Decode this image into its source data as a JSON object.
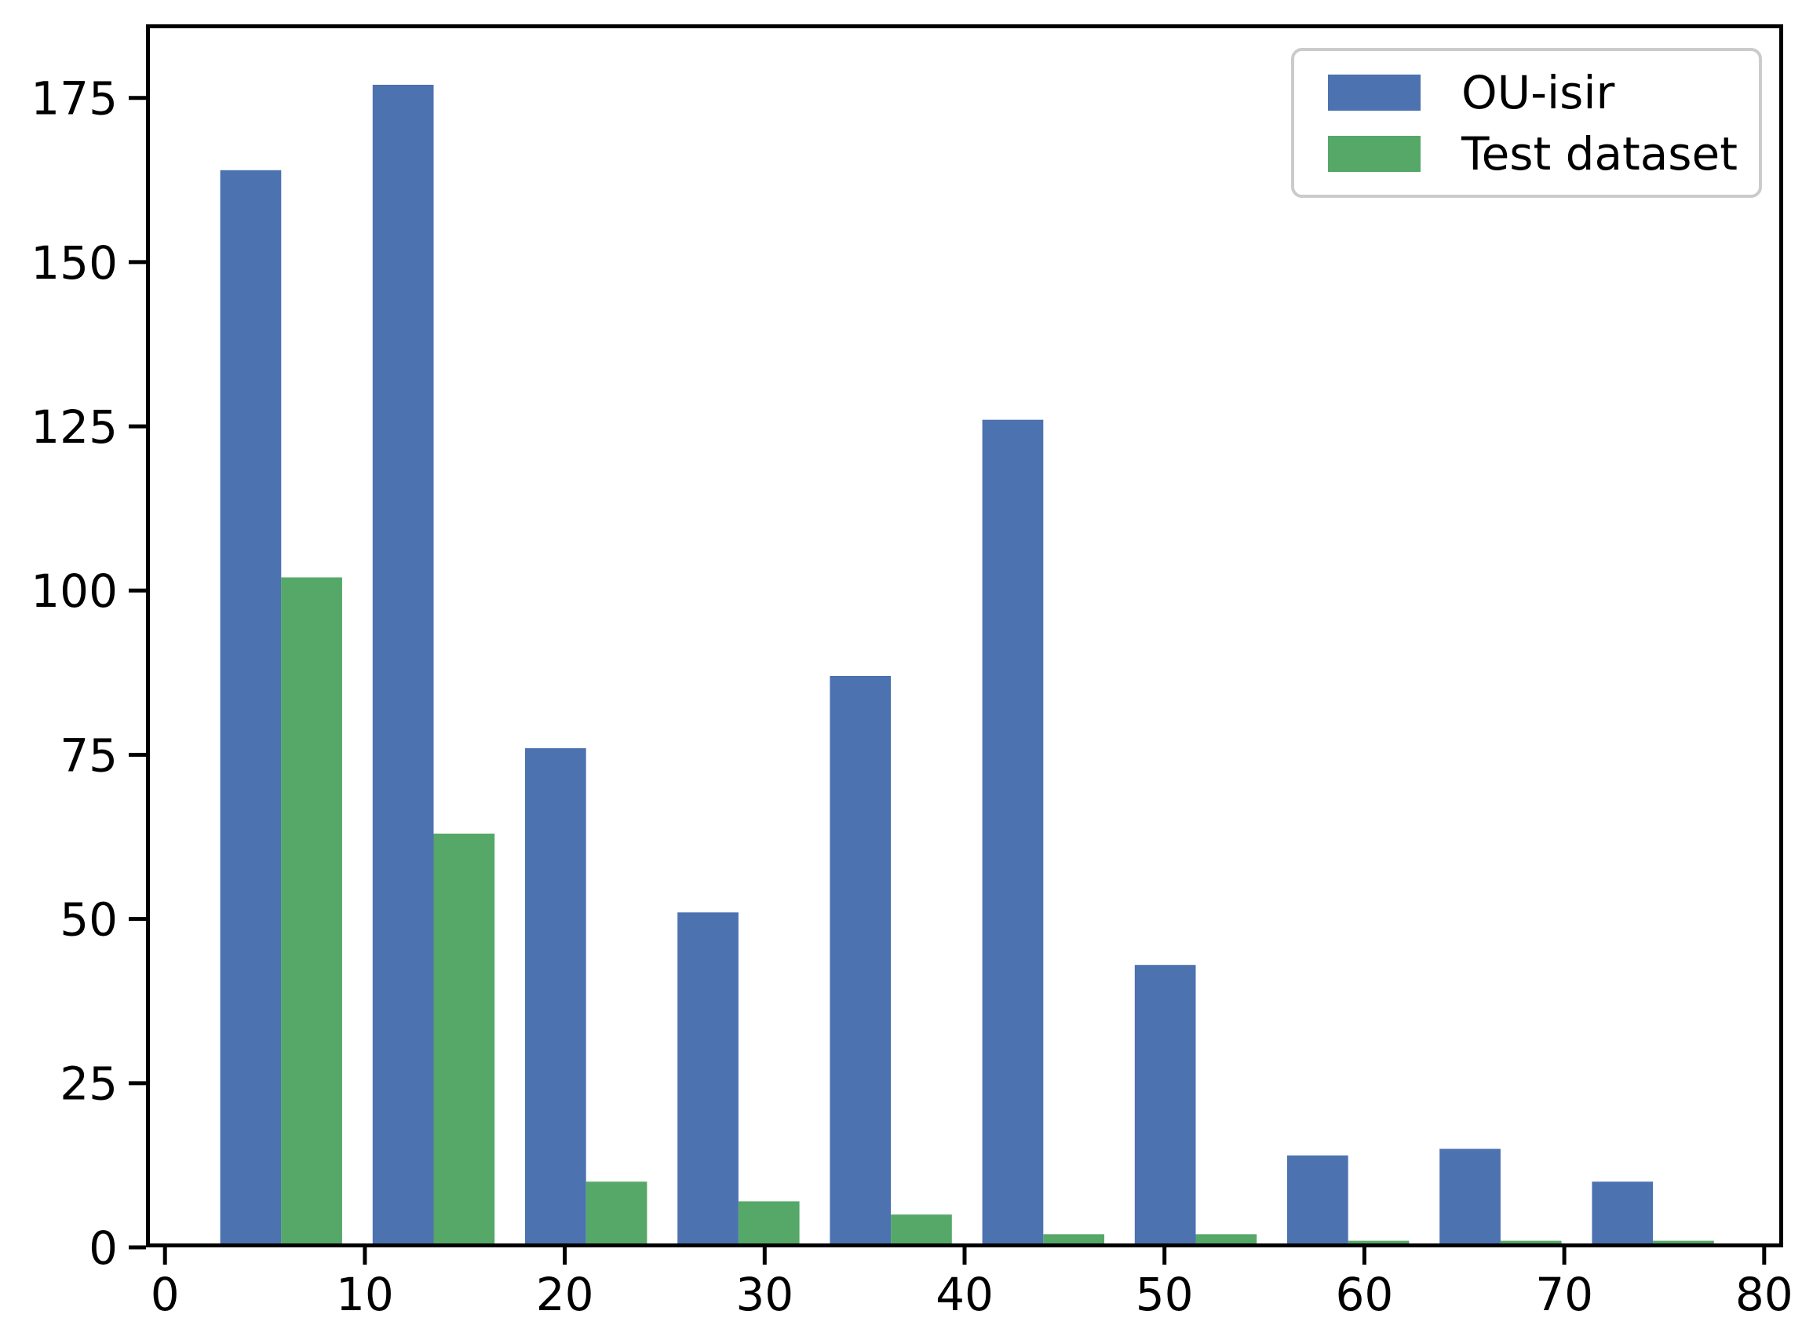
{
  "chart_data": {
    "type": "bar",
    "subtype": "grouped-histogram",
    "title": "",
    "xlabel": "",
    "ylabel": "",
    "grid": false,
    "background_color": "#ffffff",
    "spine_color": "#000000",
    "xlim": [
      -0.95,
      80.95
    ],
    "ylim": [
      0,
      186.2
    ],
    "x_ticks": [
      0,
      10,
      20,
      30,
      40,
      50,
      60,
      70,
      80
    ],
    "y_ticks": [
      0,
      25,
      50,
      75,
      100,
      125,
      150,
      175
    ],
    "bin_starts": [
      2,
      9.625,
      17.25,
      24.875,
      32.5,
      40.125,
      47.75,
      55.375,
      63,
      70.625
    ],
    "bin_width": 7.625,
    "bar_width": 3.05,
    "bar_offset": 0.7625,
    "series": [
      {
        "name": "OU-isir",
        "color": "#4C72B0",
        "values": [
          164,
          177,
          76,
          51,
          87,
          126,
          43,
          14,
          15,
          10
        ]
      },
      {
        "name": "Test dataset",
        "color": "#55A868",
        "values": [
          102,
          63,
          10,
          7,
          5,
          2,
          2,
          1,
          1,
          1
        ]
      }
    ],
    "legend": {
      "position": "upper-right",
      "border_color": "#cbcbcb",
      "labels": [
        "OU-isir",
        "Test dataset"
      ]
    }
  }
}
